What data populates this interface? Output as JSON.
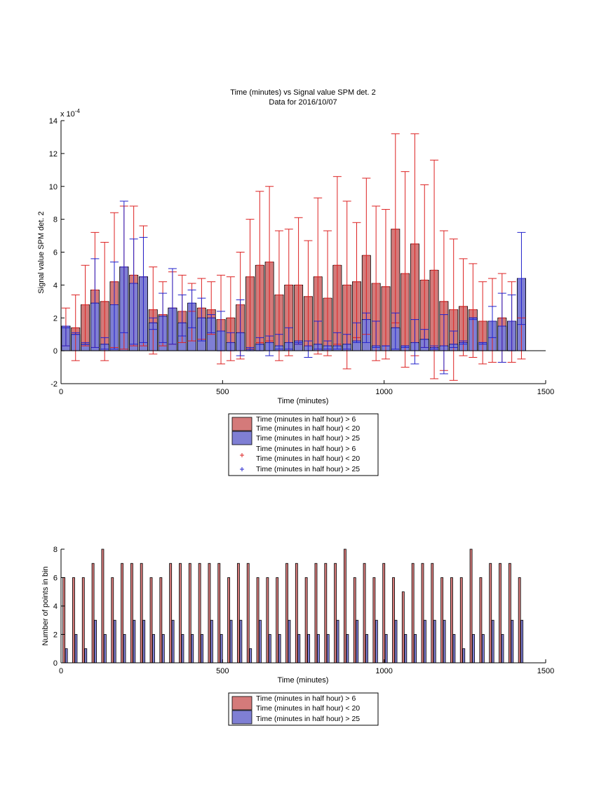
{
  "chart_data": [
    {
      "type": "bar",
      "title": "Time (minutes) vs Signal value SPM det. 2",
      "subtitle": "Data for 2016/10/07",
      "xlabel": "Time (minutes)",
      "ylabel": "Signal value SPM det. 2",
      "exponent_label": "x 10",
      "exponent_power": "-4",
      "xlim": [
        0,
        1500
      ],
      "ylim": [
        -2,
        14
      ],
      "xticks": [
        "0",
        "500",
        "1000",
        "1500"
      ],
      "yticks": [
        "-2",
        "0",
        "2",
        "4",
        "6",
        "8",
        "10",
        "12",
        "14"
      ],
      "grid": false,
      "legend_position": "below",
      "colors": {
        "series1": "#d47a7a",
        "series2": "#7f7fd4",
        "err1": "#dd2222",
        "err2": "#2222cc"
      },
      "legend": [
        "Time (minutes in half hour) > 6",
        "Time (minutes in half hour) < 20",
        "Time (minutes in half hour) > 25",
        "Time (minutes in half hour) > 6",
        "Time (minutes in half hour) < 20",
        "Time (minutes in half hour) > 25"
      ],
      "x": [
        15,
        45,
        75,
        105,
        135,
        165,
        195,
        225,
        255,
        285,
        315,
        345,
        375,
        405,
        435,
        465,
        495,
        525,
        555,
        585,
        615,
        645,
        675,
        705,
        735,
        765,
        795,
        825,
        855,
        885,
        915,
        945,
        975,
        1005,
        1035,
        1065,
        1095,
        1125,
        1155,
        1185,
        1215,
        1245,
        1275,
        1305,
        1335,
        1365,
        1395,
        1425
      ],
      "series": [
        {
          "values": [
            1.5,
            1.4,
            2.8,
            3.7,
            3.0,
            4.2,
            5.1,
            4.6,
            4.5,
            2.5,
            2.2,
            2.6,
            2.4,
            2.4,
            2.6,
            2.5,
            1.9,
            2.0,
            2.8,
            4.5,
            5.2,
            5.4,
            3.4,
            4.0,
            4.0,
            3.3,
            4.5,
            3.2,
            5.2,
            4.0,
            4.2,
            5.8,
            4.1,
            3.9,
            7.4,
            4.7,
            6.5,
            4.3,
            4.9,
            3.0,
            2.5,
            2.7,
            2.5,
            1.8,
            1.8,
            2.0,
            1.8,
            4.4
          ],
          "err_low": [
            0.3,
            -0.6,
            0.3,
            0.2,
            -0.6,
            0.2,
            0.1,
            0.3,
            0.3,
            -0.2,
            0.3,
            0.4,
            0.5,
            0.6,
            0.7,
            1.0,
            -0.8,
            -0.6,
            -0.5,
            0.1,
            0.5,
            0.6,
            -0.6,
            -0.3,
            0.4,
            0.3,
            -0.2,
            -0.3,
            0.4,
            -1.1,
            0.8,
            1.0,
            -0.6,
            -0.5,
            1.7,
            -1.0,
            -0.3,
            0.2,
            -1.7,
            -1.2,
            -1.8,
            -0.3,
            -0.4,
            -0.8,
            -0.7,
            -0.7,
            -0.7,
            -0.5
          ],
          "err_high": [
            2.6,
            3.4,
            5.2,
            7.2,
            6.6,
            8.4,
            8.8,
            8.8,
            7.6,
            5.1,
            4.2,
            4.8,
            4.6,
            4.1,
            4.4,
            4.2,
            4.6,
            4.5,
            6.0,
            8.0,
            9.7,
            10.0,
            7.3,
            7.4,
            8.1,
            6.7,
            9.3,
            7.3,
            10.6,
            9.1,
            7.8,
            10.5,
            8.8,
            8.6,
            13.2,
            10.9,
            13.2,
            10.1,
            11.6,
            7.3,
            6.8,
            5.6,
            5.3,
            4.2,
            4.4,
            4.7,
            4.2,
            2.0
          ]
        },
        {
          "values": [
            1.5,
            1.0,
            0.4,
            2.9,
            0.4,
            2.8,
            5.1,
            4.1,
            4.5,
            1.7,
            2.1,
            2.6,
            1.7,
            2.9,
            2.0,
            2.0,
            1.2,
            0.5,
            1.1,
            0.1,
            0.4,
            0.5,
            0.3,
            0.5,
            0.6,
            0.3,
            0.4,
            0.3,
            0.3,
            0.4,
            0.6,
            1.9,
            0.3,
            0.3,
            1.4,
            0.3,
            0.5,
            0.7,
            0.2,
            0.3,
            0.4,
            0.5,
            2.0,
            0.5,
            1.8,
            1.5,
            1.8,
            4.4
          ],
          "err_low": [
            0.3,
            1.0,
            0.4,
            0.2,
            0.1,
            0.1,
            1.1,
            0.4,
            0.5,
            1.3,
            0.5,
            0.4,
            0.9,
            1.4,
            0.6,
            1.1,
            0.0,
            0.0,
            -0.3,
            0.0,
            0.0,
            -0.3,
            0.1,
            0.1,
            0.4,
            -0.4,
            0.1,
            0.1,
            0.1,
            0.1,
            0.5,
            0.5,
            0.2,
            0.3,
            0.1,
            0.2,
            -0.8,
            0.2,
            0.1,
            -1.4,
            0.2,
            0.4,
            1.9,
            0.4,
            0.8,
            -0.7,
            0.0,
            1.6
          ],
          "err_high": [
            1.4,
            1.1,
            0.5,
            5.6,
            0.8,
            5.4,
            9.1,
            6.8,
            6.9,
            2.0,
            3.5,
            5.0,
            3.4,
            3.7,
            3.2,
            2.2,
            2.4,
            1.1,
            3.1,
            0.2,
            0.8,
            0.9,
            1.0,
            1.4,
            0.5,
            0.6,
            1.8,
            0.6,
            1.1,
            1.0,
            1.7,
            2.3,
            1.8,
            0.3,
            2.3,
            0.3,
            1.9,
            1.3,
            0.3,
            2.2,
            1.2,
            0.6,
            2.0,
            0.5,
            2.7,
            3.5,
            3.4,
            7.2
          ]
        }
      ]
    },
    {
      "type": "bar",
      "xlabel": "Time (minutes)",
      "ylabel": "Number of points in bin",
      "xlim": [
        0,
        1500
      ],
      "ylim": [
        0,
        8
      ],
      "xticks": [
        "0",
        "500",
        "1000",
        "1500"
      ],
      "yticks": [
        "0",
        "2",
        "4",
        "6",
        "8"
      ],
      "grid": false,
      "legend_position": "below",
      "colors": {
        "series1": "#d47a7a",
        "series2": "#7f7fd4"
      },
      "legend": [
        "Time (minutes in half hour) > 6",
        "Time (minutes in half hour) < 20",
        "Time (minutes in half hour) > 25"
      ],
      "x": [
        15,
        45,
        75,
        105,
        135,
        165,
        195,
        225,
        255,
        285,
        315,
        345,
        375,
        405,
        435,
        465,
        495,
        525,
        555,
        585,
        615,
        645,
        675,
        705,
        735,
        765,
        795,
        825,
        855,
        885,
        915,
        945,
        975,
        1005,
        1035,
        1065,
        1095,
        1125,
        1155,
        1185,
        1215,
        1245,
        1275,
        1305,
        1335,
        1365,
        1395,
        1425
      ],
      "series": [
        {
          "values": [
            6,
            6,
            6,
            7,
            8,
            6,
            7,
            7,
            7,
            6,
            6,
            7,
            7,
            7,
            7,
            7,
            7,
            6,
            7,
            7,
            6,
            6,
            6,
            7,
            7,
            6,
            7,
            7,
            7,
            8,
            6,
            7,
            6,
            7,
            6,
            5,
            7,
            7,
            7,
            6,
            6,
            6,
            8,
            6,
            7,
            7,
            7,
            6
          ]
        },
        {
          "values": [
            1,
            2,
            1,
            3,
            2,
            3,
            2,
            3,
            3,
            2,
            2,
            3,
            2,
            2,
            2,
            3,
            2,
            3,
            3,
            1,
            3,
            2,
            2,
            3,
            2,
            2,
            2,
            2,
            3,
            2,
            3,
            2,
            3,
            2,
            3,
            2,
            2,
            3,
            3,
            3,
            2,
            1,
            2,
            2,
            3,
            2,
            3,
            3
          ]
        }
      ]
    }
  ]
}
